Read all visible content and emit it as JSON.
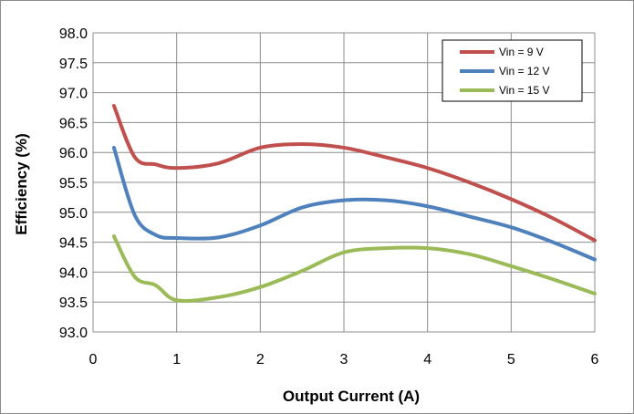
{
  "chart_data": {
    "type": "line",
    "title": "",
    "xlabel": "Output Current (A)",
    "ylabel": "Efficiency (%)",
    "xlim": [
      0,
      6
    ],
    "ylim": [
      93.0,
      98.0
    ],
    "x_ticks": [
      "0",
      "1",
      "2",
      "3",
      "4",
      "5",
      "6"
    ],
    "y_ticks": [
      "93.0",
      "93.5",
      "94.0",
      "94.5",
      "95.0",
      "95.5",
      "96.0",
      "96.5",
      "97.0",
      "97.5",
      "98.0"
    ],
    "grid": true,
    "legend_position": "top-right",
    "series": [
      {
        "name": "Vin = 9 V",
        "color": "#c0504d",
        "x": [
          0.25,
          0.5,
          0.75,
          1.0,
          1.5,
          2.0,
          2.5,
          3.0,
          3.5,
          4.0,
          4.5,
          5.0,
          5.5,
          6.0
        ],
        "y": [
          96.78,
          95.92,
          95.8,
          95.74,
          95.82,
          96.08,
          96.14,
          96.08,
          95.92,
          95.74,
          95.5,
          95.22,
          94.9,
          94.53
        ]
      },
      {
        "name": "Vin = 12 V",
        "color": "#4f81bd",
        "x": [
          0.25,
          0.5,
          0.75,
          1.0,
          1.5,
          2.0,
          2.5,
          3.0,
          3.5,
          4.0,
          4.5,
          5.0,
          5.5,
          6.0
        ],
        "y": [
          96.08,
          94.95,
          94.62,
          94.57,
          94.58,
          94.78,
          95.08,
          95.2,
          95.2,
          95.1,
          94.93,
          94.75,
          94.5,
          94.21
        ]
      },
      {
        "name": "Vin = 15 V",
        "color": "#9bbb59",
        "x": [
          0.25,
          0.5,
          0.75,
          1.0,
          1.5,
          2.0,
          2.5,
          3.0,
          3.5,
          4.0,
          4.5,
          5.0,
          5.5,
          6.0
        ],
        "y": [
          94.6,
          93.92,
          93.78,
          93.53,
          93.58,
          93.75,
          94.02,
          94.33,
          94.4,
          94.4,
          94.3,
          94.1,
          93.88,
          93.64
        ]
      }
    ]
  }
}
